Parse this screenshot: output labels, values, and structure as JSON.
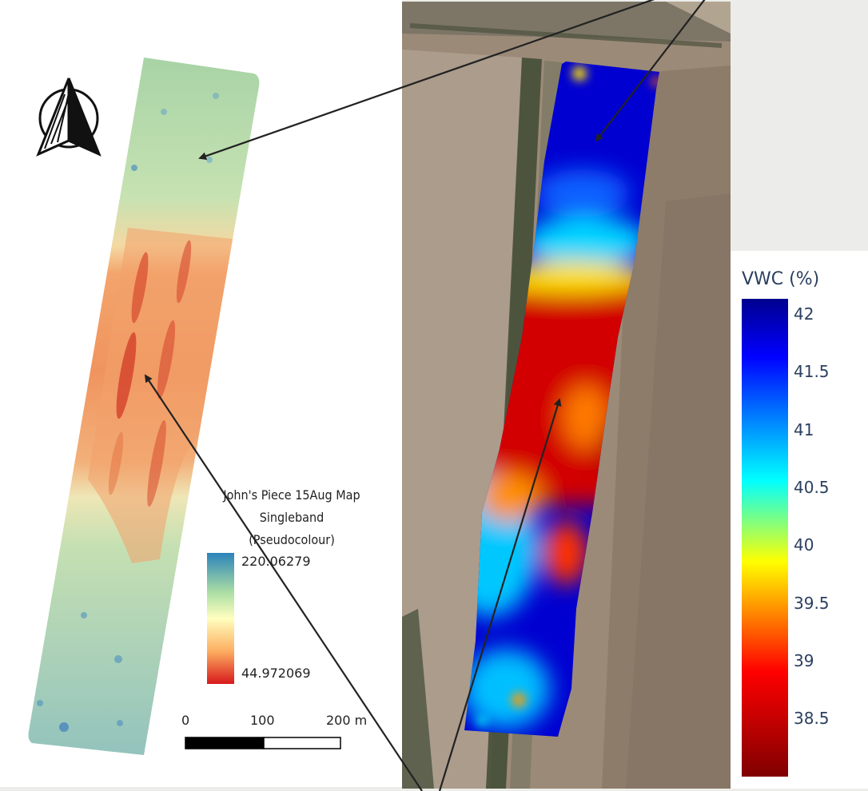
{
  "left_map": {
    "legend": {
      "title_line1": "John's Piece 15Aug Map",
      "title_line2": "Singleband",
      "title_line3": "(Pseudocolour)",
      "max_value": "220.06279",
      "min_value": "44.972069"
    },
    "scale_bar": {
      "label_0": "0",
      "label_100": "100",
      "label_200": "200 m"
    },
    "north_arrow_icon": "north-arrow-icon",
    "ramp_colors": [
      "#2b83ba",
      "#abdda4",
      "#ffffbf",
      "#fdae61",
      "#d7191c"
    ]
  },
  "right_map": {
    "colorbar": {
      "title": "VWC (%)",
      "ticks": [
        "42",
        "41.5",
        "41",
        "40.5",
        "40",
        "39.5",
        "39",
        "38.5"
      ]
    },
    "jet_colors": [
      "#00008f",
      "#0000ff",
      "#00ffff",
      "#ffff00",
      "#ff0000",
      "#800000"
    ]
  }
}
